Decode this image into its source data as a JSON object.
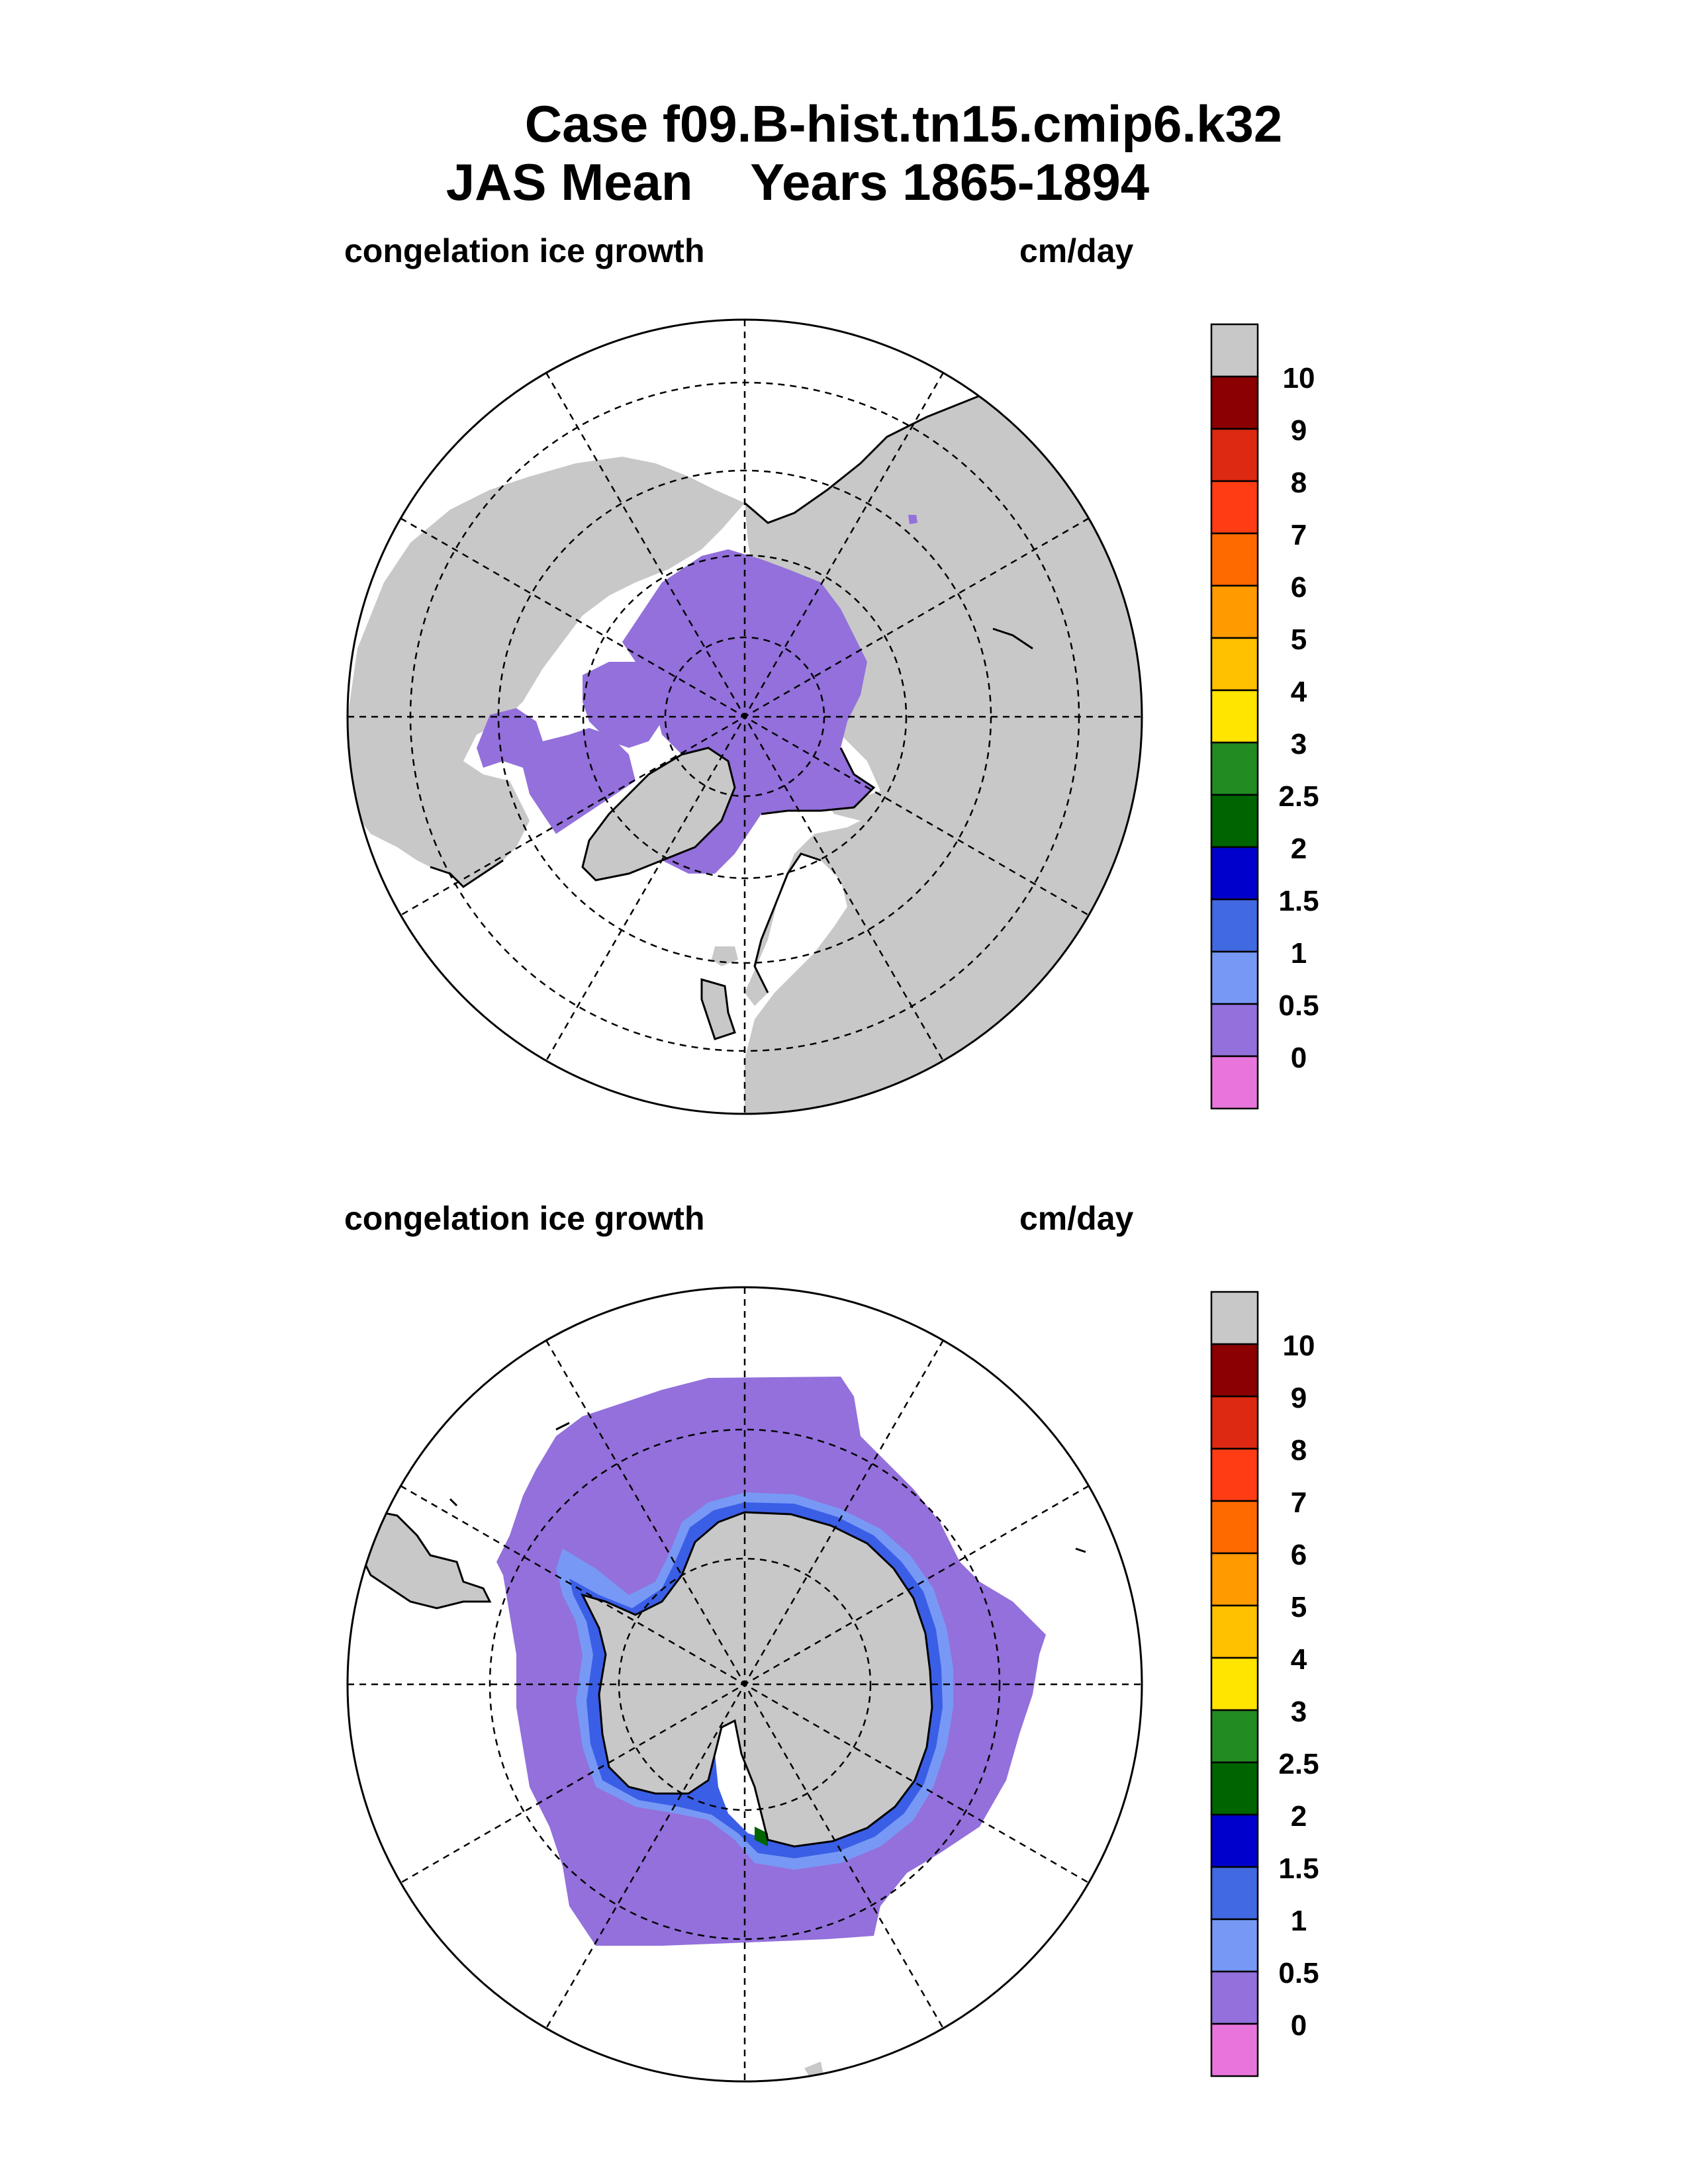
{
  "header": {
    "case_line": "Case f09.B-hist.tn15.cmip6.k32",
    "season": "JAS Mean",
    "years": "Years 1865-1894"
  },
  "colors": {
    "land": "#c8c8c8",
    "ice_low": "#9370db",
    "ice_mid": "#7799f5",
    "ice_high": "#3a5ee6",
    "ice_max": "#0000cd",
    "green": "#006400"
  },
  "chart_data": [
    {
      "type": "heatmap",
      "projection": "north polar stereographic",
      "hemisphere": "NH",
      "variable": "congelation ice growth",
      "units": "cm/day",
      "colorbar": {
        "labels": [
          "10",
          "9",
          "8",
          "7",
          "6",
          "5",
          "4",
          "3",
          "2.5",
          "2",
          "1.5",
          "1",
          "0.5",
          "0"
        ],
        "colors": [
          "#c8c8c8",
          "#8b0000",
          "#dd2911",
          "#ff3c13",
          "#ff6a00",
          "#ff9a00",
          "#ffc100",
          "#ffe500",
          "#228b22",
          "#006400",
          "#0000cd",
          "#4169e1",
          "#7799f5",
          "#9370db",
          "#e875dc"
        ]
      }
    },
    {
      "type": "heatmap",
      "projection": "south polar stereographic",
      "hemisphere": "SH",
      "variable": "congelation ice growth",
      "units": "cm/day",
      "colorbar": {
        "labels": [
          "10",
          "9",
          "8",
          "7",
          "6",
          "5",
          "4",
          "3",
          "2.5",
          "2",
          "1.5",
          "1",
          "0.5",
          "0"
        ],
        "colors": [
          "#c8c8c8",
          "#8b0000",
          "#dd2911",
          "#ff3c13",
          "#ff6a00",
          "#ff9a00",
          "#ffc100",
          "#ffe500",
          "#228b22",
          "#006400",
          "#0000cd",
          "#4169e1",
          "#7799f5",
          "#9370db",
          "#e875dc"
        ]
      }
    }
  ]
}
